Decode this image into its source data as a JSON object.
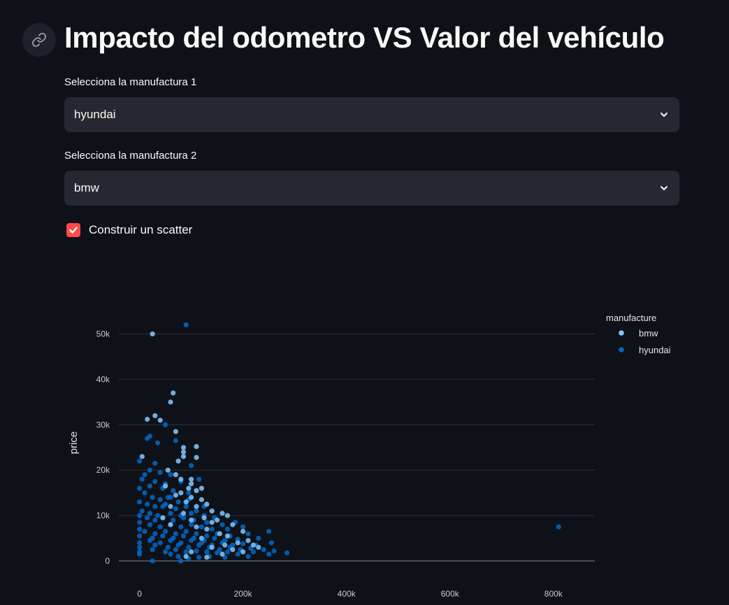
{
  "header": {
    "title": "Impacto del odometro VS Valor del vehículo"
  },
  "selectors": [
    {
      "label": "Selecciona la manufactura 1",
      "value": "hyundai"
    },
    {
      "label": "Selecciona la manufactura 2",
      "value": "bmw"
    }
  ],
  "checkbox": {
    "label": "Construir un scatter",
    "checked": true
  },
  "colors": {
    "accent": "#ff4b4b",
    "bmw": "#83c9ff",
    "hyundai": "#0068c9"
  },
  "chart_data": {
    "type": "scatter",
    "xlabel": "",
    "ylabel": "price",
    "legend_title": "manufacture",
    "legend_position": "top-right",
    "grid": true,
    "xlim": [
      -40000,
      880000
    ],
    "ylim": [
      -2000,
      55000
    ],
    "x_ticks": [
      0,
      200000,
      400000,
      600000,
      800000
    ],
    "x_tick_labels": [
      "0",
      "200k",
      "400k",
      "600k",
      "800k"
    ],
    "y_ticks": [
      0,
      10000,
      20000,
      30000,
      40000,
      50000
    ],
    "y_tick_labels": [
      "0",
      "10k",
      "20k",
      "30k",
      "40k",
      "50k"
    ],
    "series": [
      {
        "name": "bmw",
        "points": [
          [
            25000,
            50000
          ],
          [
            65000,
            37000
          ],
          [
            60000,
            35000
          ],
          [
            30000,
            32000
          ],
          [
            15000,
            31200
          ],
          [
            40000,
            31000
          ],
          [
            70000,
            28500
          ],
          [
            110000,
            25200
          ],
          [
            85000,
            25000
          ],
          [
            85000,
            24000
          ],
          [
            85000,
            23000
          ],
          [
            5000,
            23000
          ],
          [
            110000,
            22800
          ],
          [
            75000,
            22000
          ],
          [
            55000,
            20000
          ],
          [
            80000,
            18000
          ],
          [
            100000,
            18000
          ],
          [
            100000,
            17000
          ],
          [
            95000,
            16000
          ],
          [
            110000,
            15500
          ],
          [
            80000,
            15000
          ],
          [
            70000,
            14500
          ],
          [
            100000,
            14000
          ],
          [
            120000,
            13500
          ],
          [
            90000,
            13000
          ],
          [
            130000,
            12500
          ],
          [
            110000,
            12000
          ],
          [
            60000,
            12000
          ],
          [
            140000,
            11000
          ],
          [
            160000,
            10500
          ],
          [
            170000,
            10000
          ],
          [
            125000,
            9500
          ],
          [
            150000,
            9000
          ],
          [
            100000,
            9000
          ],
          [
            140000,
            8500
          ],
          [
            180000,
            8000
          ],
          [
            110000,
            7500
          ],
          [
            130000,
            7000
          ],
          [
            200000,
            6500
          ],
          [
            155000,
            6000
          ],
          [
            170000,
            5500
          ],
          [
            120000,
            5000
          ],
          [
            210000,
            4500
          ],
          [
            190000,
            4000
          ],
          [
            165000,
            3500
          ],
          [
            140000,
            3000
          ],
          [
            230000,
            3000
          ],
          [
            180000,
            2500
          ],
          [
            100000,
            2000
          ],
          [
            200000,
            2000
          ],
          [
            160000,
            1500
          ],
          [
            90000,
            1000
          ],
          [
            130000,
            800
          ],
          [
            220000,
            3500
          ],
          [
            60000,
            8000
          ],
          [
            45000,
            9500
          ],
          [
            85000,
            10500
          ],
          [
            120000,
            16000
          ],
          [
            70000,
            19000
          ],
          [
            50000,
            16500
          ]
        ]
      },
      {
        "name": "hyundai",
        "points": [
          [
            90000,
            52000
          ],
          [
            50000,
            30000
          ],
          [
            15000,
            27000
          ],
          [
            20000,
            27500
          ],
          [
            35000,
            26000
          ],
          [
            70000,
            26500
          ],
          [
            0,
            22000
          ],
          [
            30000,
            21500
          ],
          [
            20000,
            20000
          ],
          [
            10000,
            19000
          ],
          [
            40000,
            19500
          ],
          [
            60000,
            19000
          ],
          [
            100000,
            21000
          ],
          [
            5000,
            18000
          ],
          [
            30000,
            17500
          ],
          [
            50000,
            17000
          ],
          [
            80000,
            17500
          ],
          [
            115000,
            18000
          ],
          [
            0,
            16000
          ],
          [
            20000,
            16500
          ],
          [
            45000,
            16000
          ],
          [
            65000,
            15500
          ],
          [
            10000,
            15000
          ],
          [
            25000,
            14000
          ],
          [
            40000,
            13500
          ],
          [
            55000,
            14000
          ],
          [
            75000,
            13000
          ],
          [
            95000,
            13500
          ],
          [
            0,
            13000
          ],
          [
            15000,
            12500
          ],
          [
            30000,
            12000
          ],
          [
            50000,
            12500
          ],
          [
            70000,
            11500
          ],
          [
            90000,
            12000
          ],
          [
            110000,
            11000
          ],
          [
            5000,
            11000
          ],
          [
            20000,
            10500
          ],
          [
            35000,
            10000
          ],
          [
            60000,
            10500
          ],
          [
            80000,
            10000
          ],
          [
            100000,
            10500
          ],
          [
            125000,
            10000
          ],
          [
            145000,
            9500
          ],
          [
            0,
            10000
          ],
          [
            15000,
            9500
          ],
          [
            30000,
            9000
          ],
          [
            45000,
            9500
          ],
          [
            65000,
            9000
          ],
          [
            85000,
            9500
          ],
          [
            105000,
            9000
          ],
          [
            130000,
            8500
          ],
          [
            160000,
            8000
          ],
          [
            185000,
            8500
          ],
          [
            0,
            8500
          ],
          [
            20000,
            8000
          ],
          [
            40000,
            7500
          ],
          [
            60000,
            8000
          ],
          [
            80000,
            7500
          ],
          [
            100000,
            8000
          ],
          [
            120000,
            7500
          ],
          [
            140000,
            7000
          ],
          [
            170000,
            7000
          ],
          [
            200000,
            7500
          ],
          [
            0,
            7000
          ],
          [
            10000,
            6500
          ],
          [
            30000,
            6000
          ],
          [
            50000,
            6500
          ],
          [
            70000,
            6000
          ],
          [
            90000,
            6500
          ],
          [
            110000,
            6000
          ],
          [
            130000,
            5500
          ],
          [
            150000,
            6000
          ],
          [
            175000,
            5500
          ],
          [
            210000,
            6000
          ],
          [
            250000,
            6500
          ],
          [
            0,
            5500
          ],
          [
            25000,
            5000
          ],
          [
            45000,
            5500
          ],
          [
            65000,
            5000
          ],
          [
            85000,
            5500
          ],
          [
            105000,
            5000
          ],
          [
            125000,
            4500
          ],
          [
            145000,
            5000
          ],
          [
            165000,
            4500
          ],
          [
            190000,
            4800
          ],
          [
            230000,
            5000
          ],
          [
            0,
            4000
          ],
          [
            20000,
            4500
          ],
          [
            40000,
            4000
          ],
          [
            60000,
            4500
          ],
          [
            80000,
            4000
          ],
          [
            100000,
            4500
          ],
          [
            120000,
            4000
          ],
          [
            140000,
            3500
          ],
          [
            160000,
            4000
          ],
          [
            180000,
            3500
          ],
          [
            200000,
            3800
          ],
          [
            225000,
            3500
          ],
          [
            255000,
            4000
          ],
          [
            0,
            3000
          ],
          [
            30000,
            3500
          ],
          [
            55000,
            3000
          ],
          [
            75000,
            3500
          ],
          [
            95000,
            3000
          ],
          [
            115000,
            3500
          ],
          [
            135000,
            3000
          ],
          [
            155000,
            2500
          ],
          [
            175000,
            3000
          ],
          [
            195000,
            2500
          ],
          [
            215000,
            2800
          ],
          [
            240000,
            2500
          ],
          [
            0,
            2000
          ],
          [
            25000,
            2500
          ],
          [
            50000,
            2000
          ],
          [
            70000,
            2500
          ],
          [
            90000,
            2000
          ],
          [
            110000,
            2200
          ],
          [
            130000,
            2000
          ],
          [
            150000,
            1800
          ],
          [
            170000,
            2000
          ],
          [
            190000,
            1500
          ],
          [
            220000,
            2000
          ],
          [
            250000,
            1500
          ],
          [
            285000,
            1800
          ],
          [
            0,
            1500
          ],
          [
            75000,
            1000
          ],
          [
            95000,
            500
          ],
          [
            115000,
            800
          ],
          [
            135000,
            1000
          ],
          [
            165000,
            800
          ],
          [
            210000,
            1000
          ],
          [
            260000,
            2200
          ],
          [
            25000,
            0
          ],
          [
            60000,
            1500
          ],
          [
            80000,
            0
          ],
          [
            810000,
            7500
          ],
          [
            45000,
            12000
          ],
          [
            95000,
            15000
          ],
          [
            60000,
            14000
          ],
          [
            125000,
            12000
          ]
        ]
      }
    ]
  }
}
